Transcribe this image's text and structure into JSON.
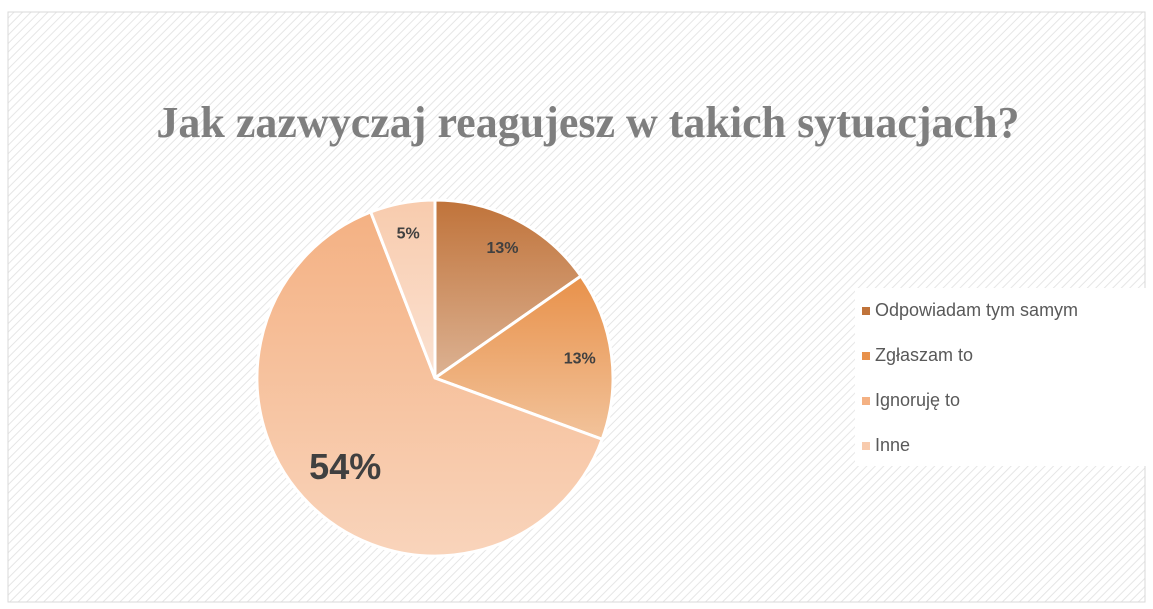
{
  "chart_data": {
    "type": "pie",
    "title": "Jak zazwyczaj reagujesz w takich sytuacjach?",
    "categories": [
      "Odpowiadam tym samym",
      "Zgłaszam to",
      "Ignoruję to",
      "Inne"
    ],
    "values": [
      13,
      13,
      54,
      5
    ],
    "value_labels": [
      "13%",
      "13%",
      "54%",
      "5%"
    ],
    "colors": [
      "#c0733a",
      "#e8914a",
      "#f4b183",
      "#f8cbad"
    ],
    "legend": "right"
  }
}
